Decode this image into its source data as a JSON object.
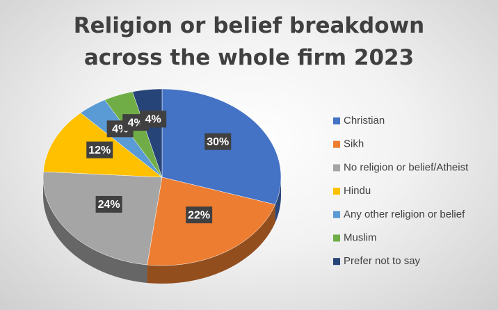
{
  "chart_data": {
    "type": "pie",
    "title": "Religion or belief breakdown across the whole firm 2023",
    "categories": [
      "Christian",
      "Sikh",
      "No religion or belief/Atheist",
      "Hindu",
      "Any other religion or belief",
      "Muslim",
      "Prefer not to say"
    ],
    "values": [
      30,
      22,
      24,
      12,
      4,
      4,
      4
    ],
    "value_labels": [
      "30%",
      "22%",
      "24%",
      "12%",
      "4%",
      "4%",
      "4%"
    ],
    "colors": [
      "#4472c4",
      "#ed7d31",
      "#a5a5a5",
      "#ffc000",
      "#5b9bd5",
      "#70ad47",
      "#264478"
    ],
    "legend": "right"
  }
}
